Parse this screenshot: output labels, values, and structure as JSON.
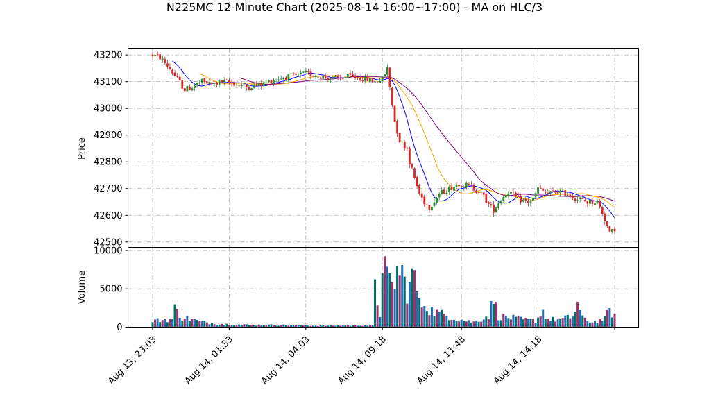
{
  "chart_data": {
    "type": "candlestick",
    "title": "N225MC 12-Minute Chart (2025-08-14 16:00~17:00) - MA on HLC/3",
    "price_panel": {
      "ylabel": "Price",
      "ylim": [
        42480,
        43225
      ],
      "yticks": [
        42500,
        42600,
        42700,
        42800,
        42900,
        43000,
        43100,
        43200
      ],
      "ytick_labels": [
        "42500",
        "42600",
        "42700",
        "42800",
        "42900",
        "43000",
        "43100",
        "43200"
      ],
      "grid": true,
      "up_color": "#2e8b2e",
      "down_color": "#d62728",
      "ma_colors": [
        "#0000ff",
        "#ffa500",
        "#800080"
      ],
      "price_path": [
        [
          0,
          43200
        ],
        [
          3,
          43190
        ],
        [
          6,
          43160
        ],
        [
          10,
          43110
        ],
        [
          13,
          43070
        ],
        [
          16,
          43080
        ],
        [
          20,
          43100
        ],
        [
          24,
          43090
        ],
        [
          28,
          43100
        ],
        [
          32,
          43095
        ],
        [
          38,
          43080
        ],
        [
          44,
          43090
        ],
        [
          50,
          43110
        ],
        [
          56,
          43120
        ],
        [
          62,
          43130
        ],
        [
          68,
          43120
        ],
        [
          74,
          43110
        ],
        [
          80,
          43120
        ],
        [
          86,
          43110
        ],
        [
          90,
          43100
        ],
        [
          93,
          43110
        ],
        [
          95,
          43150
        ],
        [
          96,
          43080
        ],
        [
          98,
          42950
        ],
        [
          100,
          42880
        ],
        [
          103,
          42850
        ],
        [
          104,
          42800
        ],
        [
          106,
          42740
        ],
        [
          108,
          42680
        ],
        [
          110,
          42650
        ],
        [
          112,
          42630
        ],
        [
          116,
          42680
        ],
        [
          120,
          42700
        ],
        [
          124,
          42720
        ],
        [
          128,
          42710
        ],
        [
          132,
          42690
        ],
        [
          134,
          42670
        ],
        [
          136,
          42640
        ],
        [
          138,
          42620
        ],
        [
          141,
          42660
        ],
        [
          144,
          42690
        ],
        [
          148,
          42660
        ],
        [
          152,
          42650
        ],
        [
          154,
          42660
        ],
        [
          156,
          42700
        ],
        [
          160,
          42680
        ],
        [
          164,
          42690
        ],
        [
          168,
          42680
        ],
        [
          172,
          42660
        ],
        [
          176,
          42650
        ],
        [
          180,
          42650
        ],
        [
          182,
          42610
        ],
        [
          184,
          42560
        ],
        [
          185,
          42530
        ],
        [
          187,
          42550
        ]
      ]
    },
    "volume_panel": {
      "ylabel": "Volume",
      "ylim": [
        0,
        10400
      ],
      "yticks": [
        0,
        5000,
        10000
      ],
      "ytick_labels": [
        "0",
        "5000",
        "10000"
      ],
      "grid": true,
      "bar_colors": [
        "#006d6d",
        "#a0306a",
        "#1f6db5"
      ],
      "volume_path": [
        [
          0,
          900
        ],
        [
          8,
          1100
        ],
        [
          9,
          2500
        ],
        [
          12,
          1400
        ],
        [
          20,
          700
        ],
        [
          30,
          400
        ],
        [
          40,
          300
        ],
        [
          50,
          300
        ],
        [
          60,
          250
        ],
        [
          70,
          200
        ],
        [
          80,
          250
        ],
        [
          86,
          250
        ],
        [
          89,
          200
        ],
        [
          90,
          5000
        ],
        [
          92,
          1800
        ],
        [
          93,
          10000
        ],
        [
          95,
          6200
        ],
        [
          97,
          5600
        ],
        [
          99,
          7500
        ],
        [
          101,
          7200
        ],
        [
          103,
          5000
        ],
        [
          106,
          7400
        ],
        [
          108,
          3000
        ],
        [
          110,
          3400
        ],
        [
          112,
          2500
        ],
        [
          115,
          2000
        ],
        [
          120,
          1500
        ],
        [
          125,
          1000
        ],
        [
          130,
          700
        ],
        [
          133,
          1100
        ],
        [
          136,
          1600
        ],
        [
          138,
          4000
        ],
        [
          140,
          1500
        ],
        [
          145,
          1300
        ],
        [
          150,
          1000
        ],
        [
          155,
          900
        ],
        [
          158,
          2200
        ],
        [
          160,
          1100
        ],
        [
          165,
          1000
        ],
        [
          170,
          1500
        ],
        [
          172,
          3200
        ],
        [
          174,
          1200
        ],
        [
          178,
          700
        ],
        [
          183,
          1100
        ],
        [
          185,
          2400
        ],
        [
          187,
          1500
        ]
      ]
    },
    "x": {
      "count": 188,
      "tick_positions": [
        0,
        31,
        62,
        93,
        125,
        156,
        187
      ],
      "tick_labels": [
        "Aug 13, 23:03",
        "Aug 14, 01:33",
        "Aug 14, 04:03",
        "Aug 14, 09:18",
        "Aug 14, 11:48",
        "Aug 14, 14:18",
        ""
      ]
    }
  }
}
